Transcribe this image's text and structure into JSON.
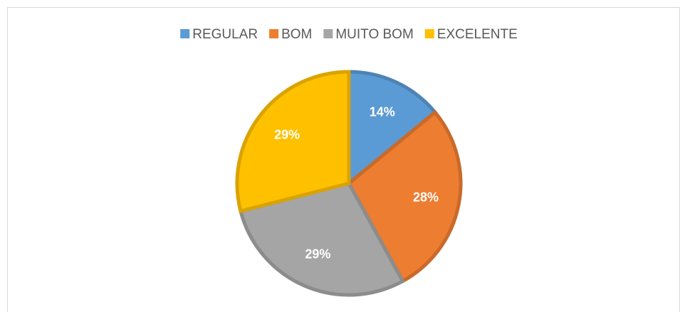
{
  "chart_data": {
    "type": "pie",
    "categories": [
      "REGULAR",
      "BOM",
      "MUITO BOM",
      "EXCELENTE"
    ],
    "values": [
      14,
      28,
      29,
      29
    ],
    "value_labels": [
      "14%",
      "28%",
      "29%",
      "29%"
    ],
    "colors": [
      "#5b9bd5",
      "#ed7d31",
      "#a5a5a5",
      "#ffc000"
    ],
    "legend": "top"
  }
}
